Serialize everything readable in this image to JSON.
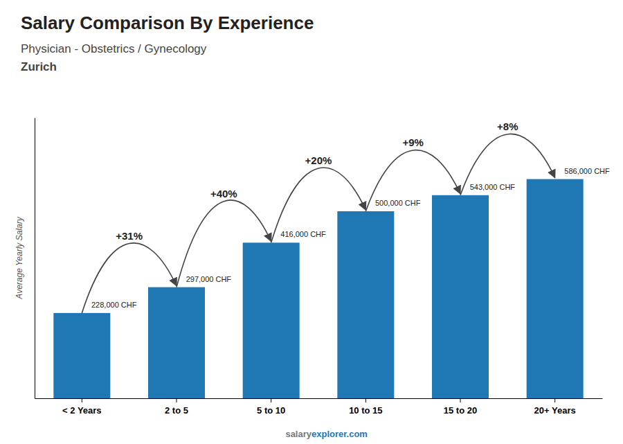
{
  "chart_data": {
    "type": "bar",
    "title": "Salary Comparison By Experience",
    "subtitle": [
      "Physician - Obstetrics / Gynecology",
      "Zurich"
    ],
    "ylabel": "Average Yearly Salary",
    "categories": [
      "< 2 Years",
      "2 to 5",
      "5 to 10",
      "10 to 15",
      "15 to 20",
      "20+ Years"
    ],
    "values": [
      228000,
      297000,
      416000,
      500000,
      543000,
      586000
    ],
    "value_labels": [
      "228,000 CHF",
      "297,000 CHF",
      "416,000 CHF",
      "500,000 CHF",
      "543,000 CHF",
      "586,000 CHF"
    ],
    "annotations": [
      null,
      "+31%",
      "+40%",
      "+20%",
      "+9%",
      "+8%"
    ],
    "footer": [
      "salary",
      "explorer.com"
    ],
    "color": "#1f77b4",
    "ylim": [
      0,
      750000
    ],
    "data_labels": true,
    "tick_labels": "x",
    "grid": false
  }
}
